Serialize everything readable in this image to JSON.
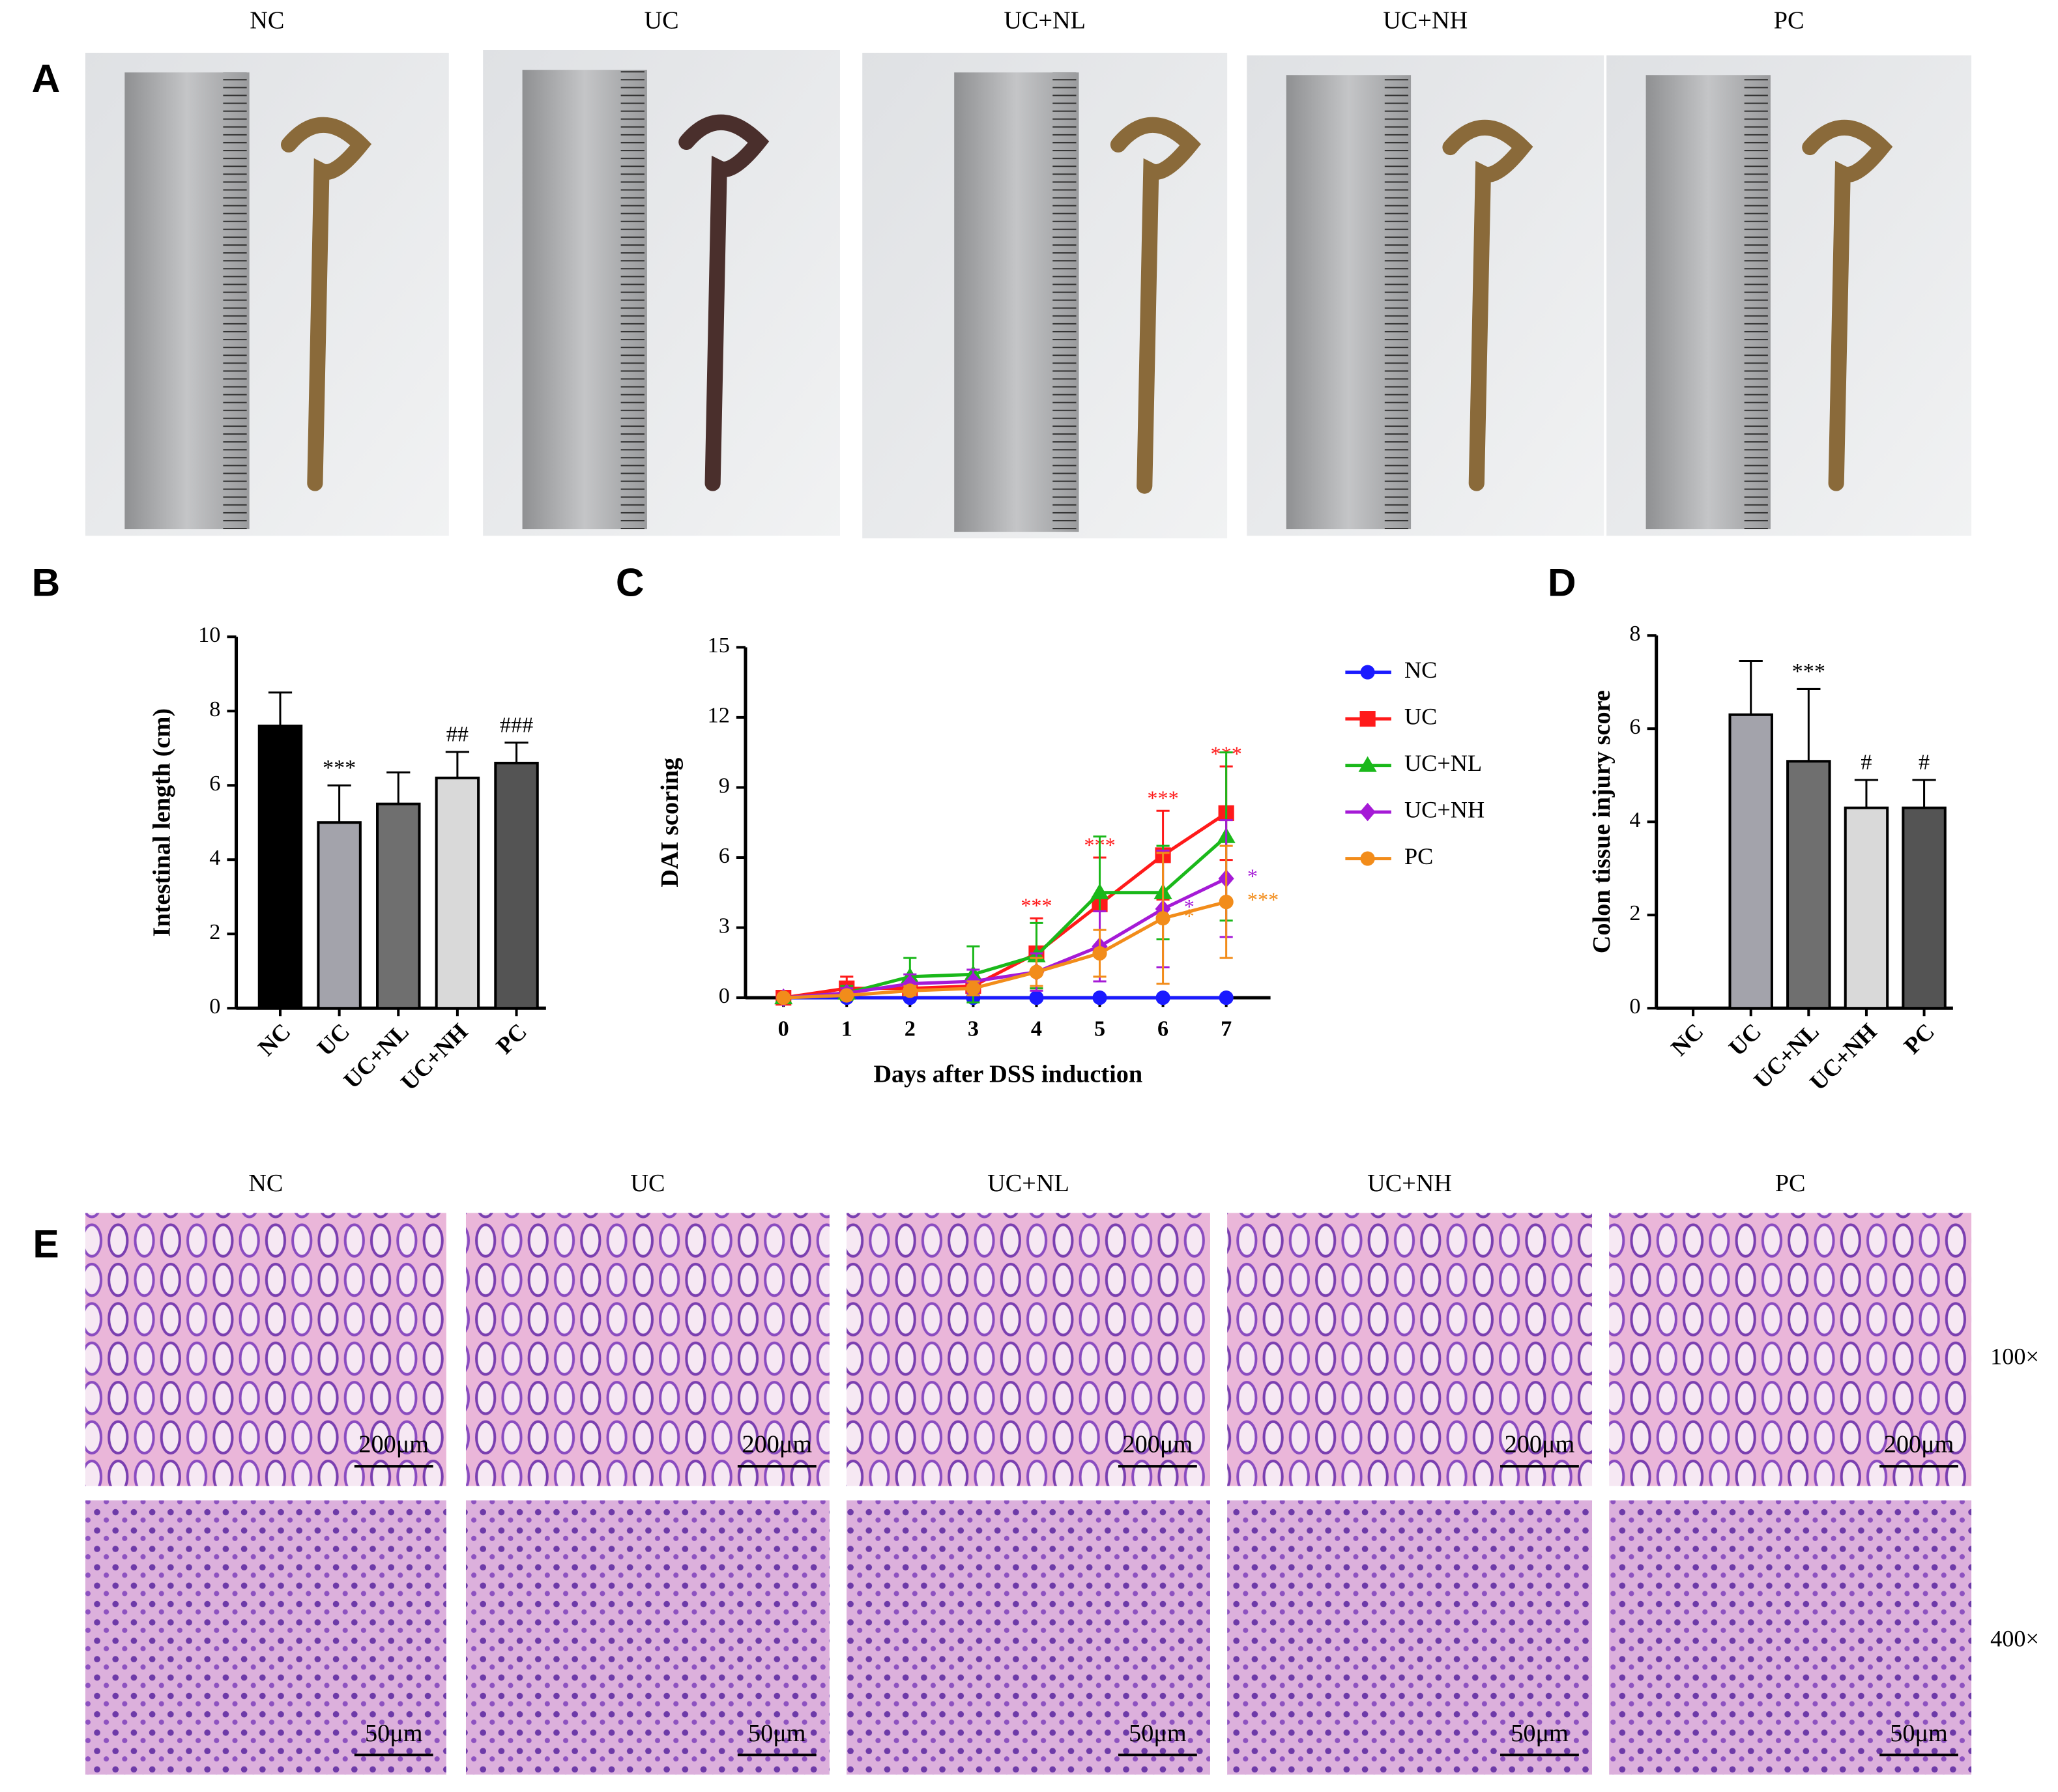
{
  "panel_labels": [
    "A",
    "B",
    "C",
    "D",
    "E"
  ],
  "photos": {
    "groups": [
      "NC",
      "UC",
      "UC+NL",
      "UC+NH",
      "PC"
    ]
  },
  "histology": {
    "groups": [
      "NC",
      "UC",
      "UC+NL",
      "UC+NH",
      "PC"
    ],
    "magnifications": [
      "100×",
      "400×"
    ],
    "scale_bars": [
      "200μm",
      "50μm"
    ]
  },
  "chart_data": [
    {
      "type": "bar",
      "ylabel": "Intestinal length (cm)",
      "categories": [
        "NC",
        "UC",
        "UC+NL",
        "UC+NH",
        "PC"
      ],
      "values": [
        7.6,
        5.0,
        5.5,
        6.2,
        6.6
      ],
      "errors": [
        0.9,
        1.0,
        0.85,
        0.7,
        0.55
      ],
      "value_annotations": [
        null,
        "***",
        null,
        "##",
        "###"
      ],
      "colors": [
        "#000000",
        "#a3a3ab",
        "#6f6f6f",
        "#d9d9d9",
        "#545454"
      ],
      "ylim": [
        0,
        10
      ],
      "yticks": [
        0,
        2,
        4,
        6,
        8,
        10
      ]
    },
    {
      "type": "line",
      "xlabel": "Days after DSS induction",
      "ylabel": "DAI scoring",
      "x": [
        0,
        1,
        2,
        3,
        4,
        5,
        6,
        7
      ],
      "xlim": [
        -0.6,
        7.7
      ],
      "xticks": [
        0,
        1,
        2,
        3,
        4,
        5,
        6,
        7
      ],
      "ylim": [
        0,
        15
      ],
      "yticks": [
        0,
        3,
        6,
        9,
        12,
        15
      ],
      "legend": "right",
      "series": [
        {
          "name": "NC",
          "color": "#1a1aff",
          "marker": "circle",
          "values": [
            0,
            0,
            0,
            0,
            0,
            0,
            0,
            0
          ]
        },
        {
          "name": "UC",
          "color": "#ff1a1a",
          "marker": "square",
          "values": [
            0,
            0.4,
            0.4,
            0.5,
            1.9,
            4.0,
            6.1,
            7.9
          ],
          "errors": [
            0,
            0.5,
            0.3,
            0.3,
            1.5,
            2.0,
            1.9,
            2.0
          ],
          "annotations": [
            null,
            null,
            null,
            null,
            "***",
            "***",
            "***",
            "***"
          ]
        },
        {
          "name": "UC+NL",
          "color": "#1ab81a",
          "marker": "triangle",
          "values": [
            0,
            0.2,
            0.9,
            1.0,
            1.8,
            4.5,
            4.5,
            6.9
          ],
          "errors": [
            0,
            0.3,
            0.8,
            1.2,
            1.4,
            2.4,
            2.0,
            3.6
          ]
        },
        {
          "name": "UC+NH",
          "color": "#a51ad6",
          "marker": "diamond",
          "values": [
            0,
            0.2,
            0.6,
            0.7,
            1.1,
            2.2,
            3.8,
            5.1
          ],
          "errors": [
            0,
            0.2,
            0.4,
            0.5,
            0.8,
            1.5,
            2.5,
            2.5
          ],
          "annotations": [
            null,
            null,
            null,
            null,
            null,
            null,
            "*",
            "*"
          ]
        },
        {
          "name": "PC",
          "color": "#f28c1a",
          "marker": "circle",
          "values": [
            0,
            0.1,
            0.3,
            0.4,
            1.1,
            1.9,
            3.4,
            4.1
          ],
          "errors": [
            0,
            0.1,
            0.2,
            0.3,
            0.6,
            1.0,
            2.8,
            2.4
          ],
          "annotations": [
            null,
            null,
            null,
            null,
            null,
            null,
            "*",
            "***"
          ]
        }
      ]
    },
    {
      "type": "bar",
      "ylabel": "Colon tissue injury score",
      "categories": [
        "NC",
        "UC",
        "UC+NL",
        "UC+NH",
        "PC"
      ],
      "values": [
        0,
        6.3,
        5.3,
        4.3,
        4.3
      ],
      "errors": [
        0,
        1.15,
        1.55,
        0.6,
        0.6
      ],
      "value_annotations": [
        null,
        null,
        "***",
        "#",
        "#"
      ],
      "colors": [
        "#000000",
        "#a3a3ab",
        "#6f6f6f",
        "#d9d9d9",
        "#545454"
      ],
      "ylim": [
        0,
        8
      ],
      "yticks": [
        0,
        2,
        4,
        6,
        8
      ]
    }
  ]
}
